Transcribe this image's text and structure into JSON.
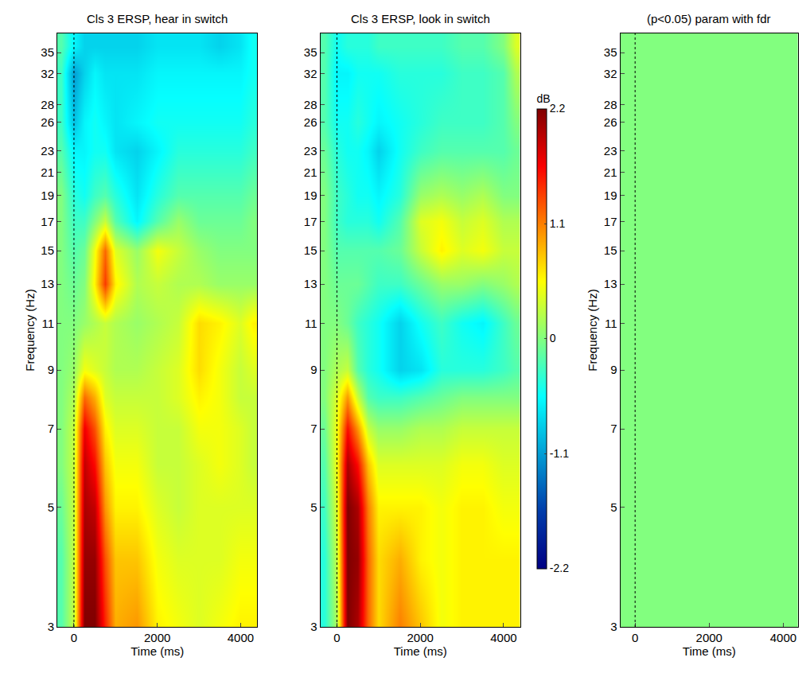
{
  "chart_data": [
    {
      "type": "heatmap",
      "title": "Cls 3 ERSP, hear in switch",
      "x_label": "Time (ms)",
      "y_label": "Frequency (Hz)",
      "log": "y",
      "color": "Jet",
      "color_range": [
        -2.2,
        2.2
      ],
      "event_times": [
        0
      ],
      "xlim": [
        -400,
        4400
      ],
      "xticks": [
        0,
        2000,
        4000
      ],
      "ylim": [
        3,
        38
      ],
      "yticks": [
        3,
        5,
        7,
        9,
        11,
        13,
        15,
        17,
        19,
        21,
        23,
        26,
        28,
        32,
        35
      ],
      "x": [
        -300,
        0,
        250,
        500,
        750,
        1000,
        1500,
        2000,
        2500,
        3000,
        3500,
        4000,
        4300
      ],
      "y": [
        3,
        4,
        5,
        6,
        7,
        8,
        9,
        11,
        13,
        15,
        17,
        19,
        23,
        26,
        32,
        36
      ],
      "cells": [
        [
          -0.2,
          0.3,
          2.2,
          2.2,
          1.5,
          0.9,
          1.0,
          0.6,
          0.5,
          0.4,
          0.5,
          0.6,
          0.6
        ],
        [
          -0.2,
          0.3,
          2.1,
          2.1,
          1.3,
          0.8,
          0.8,
          0.5,
          0.4,
          0.4,
          0.4,
          0.5,
          0.5
        ],
        [
          -0.1,
          0.3,
          2.0,
          1.9,
          1.0,
          0.6,
          0.6,
          0.4,
          0.3,
          0.4,
          0.4,
          0.4,
          0.4
        ],
        [
          0.0,
          0.3,
          1.9,
          1.6,
          0.8,
          0.5,
          0.5,
          0.3,
          0.3,
          0.4,
          0.5,
          0.4,
          0.3
        ],
        [
          0.0,
          0.3,
          1.7,
          1.3,
          0.6,
          0.4,
          0.4,
          0.3,
          0.3,
          0.5,
          0.5,
          0.4,
          0.3
        ],
        [
          0.0,
          0.2,
          1.2,
          0.9,
          0.4,
          0.3,
          0.3,
          0.3,
          0.4,
          0.6,
          0.5,
          0.3,
          0.3
        ],
        [
          0.0,
          0.1,
          0.5,
          0.4,
          0.3,
          0.2,
          0.2,
          0.3,
          0.4,
          0.7,
          0.5,
          0.3,
          0.4
        ],
        [
          0.0,
          0.0,
          0.1,
          0.2,
          0.3,
          0.2,
          0.1,
          0.2,
          0.3,
          0.7,
          0.6,
          0.4,
          0.6
        ],
        [
          0.0,
          -0.1,
          0.0,
          0.6,
          1.4,
          0.6,
          0.2,
          0.3,
          0.2,
          0.2,
          0.1,
          0.1,
          0.1
        ],
        [
          0.0,
          -0.2,
          -0.1,
          0.5,
          1.2,
          0.4,
          0.1,
          0.5,
          0.3,
          0.1,
          0.0,
          0.0,
          0.0
        ],
        [
          0.0,
          -0.3,
          -0.3,
          0.0,
          0.3,
          -0.2,
          -0.6,
          -0.2,
          0.1,
          -0.1,
          -0.1,
          -0.1,
          0.0
        ],
        [
          0.0,
          -0.4,
          -0.5,
          -0.3,
          -0.2,
          -0.4,
          -0.7,
          -0.4,
          -0.2,
          -0.2,
          -0.2,
          -0.2,
          -0.1
        ],
        [
          -0.2,
          -0.6,
          -0.6,
          -0.5,
          -0.5,
          -0.7,
          -0.8,
          -0.6,
          -0.4,
          -0.4,
          -0.4,
          -0.4,
          -0.3
        ],
        [
          -0.3,
          -0.9,
          -0.6,
          -0.5,
          -0.6,
          -0.7,
          -0.6,
          -0.5,
          -0.5,
          -0.5,
          -0.5,
          -0.5,
          -0.4
        ],
        [
          -0.3,
          -1.1,
          -0.8,
          -0.6,
          -0.7,
          -0.7,
          -0.7,
          -0.6,
          -0.6,
          -0.6,
          -0.6,
          -0.6,
          -0.5
        ],
        [
          -0.2,
          -0.6,
          -0.8,
          -0.8,
          -0.8,
          -0.8,
          -0.8,
          -0.7,
          -0.7,
          -0.7,
          -0.8,
          -0.7,
          -0.5
        ]
      ]
    },
    {
      "type": "heatmap",
      "title": "Cls 3 ERSP, look in switch",
      "x_label": "Time (ms)",
      "log": "y",
      "color": "Jet",
      "event_times": [
        0
      ],
      "colorbar": {
        "title": "dB",
        "range": [
          -2.2,
          2.2
        ],
        "ticks": [
          -2.2,
          -1.1,
          0,
          1.1,
          2.2
        ]
      },
      "xlim": [
        -400,
        4400
      ],
      "xticks": [
        0,
        2000,
        4000
      ],
      "ylim": [
        3,
        38
      ],
      "yticks": [
        3,
        5,
        7,
        9,
        11,
        13,
        15,
        17,
        19,
        21,
        23,
        26,
        28,
        32,
        35
      ],
      "x": [
        -300,
        0,
        250,
        500,
        750,
        1000,
        1500,
        2000,
        2500,
        3000,
        3500,
        4000,
        4300
      ],
      "y": [
        3,
        4,
        5,
        6,
        7,
        8,
        9,
        11,
        13,
        15,
        17,
        19,
        23,
        26,
        32,
        36
      ],
      "cells": [
        [
          -0.4,
          0.2,
          2.2,
          2.0,
          1.2,
          0.7,
          1.1,
          0.8,
          0.5,
          0.6,
          0.6,
          0.6,
          0.6
        ],
        [
          -0.4,
          0.3,
          2.2,
          2.1,
          1.2,
          0.7,
          0.9,
          0.6,
          0.5,
          0.6,
          0.6,
          0.6,
          0.6
        ],
        [
          -0.3,
          0.4,
          2.2,
          2.0,
          1.1,
          0.6,
          0.6,
          0.6,
          0.5,
          0.6,
          0.6,
          0.5,
          0.5
        ],
        [
          -0.2,
          0.5,
          2.0,
          1.6,
          0.8,
          0.4,
          0.4,
          0.4,
          0.4,
          0.5,
          0.5,
          0.4,
          0.4
        ],
        [
          -0.1,
          0.5,
          1.6,
          1.0,
          0.3,
          0.1,
          0.1,
          0.2,
          0.2,
          0.3,
          0.3,
          0.3,
          0.3
        ],
        [
          0.0,
          0.4,
          1.0,
          0.3,
          -0.2,
          -0.3,
          -0.3,
          -0.2,
          -0.1,
          0.0,
          0.0,
          0.0,
          0.0
        ],
        [
          0.0,
          0.2,
          0.3,
          -0.2,
          -0.4,
          -0.5,
          -0.8,
          -0.7,
          -0.4,
          -0.4,
          -0.4,
          -0.3,
          -0.2
        ],
        [
          0.0,
          0.0,
          -0.1,
          -0.3,
          -0.4,
          -0.5,
          -0.8,
          -0.5,
          -0.3,
          -0.5,
          -0.6,
          -0.3,
          -0.1
        ],
        [
          0.0,
          -0.1,
          -0.1,
          -0.1,
          -0.2,
          -0.3,
          -0.3,
          -0.1,
          0.1,
          0.1,
          0.0,
          0.1,
          0.2
        ],
        [
          0.0,
          -0.2,
          -0.2,
          -0.2,
          -0.2,
          -0.2,
          -0.1,
          0.3,
          0.6,
          0.4,
          0.5,
          0.3,
          0.3
        ],
        [
          0.0,
          -0.3,
          -0.4,
          -0.4,
          -0.4,
          -0.5,
          -0.2,
          0.4,
          0.5,
          0.3,
          0.4,
          0.2,
          0.2
        ],
        [
          0.0,
          -0.3,
          -0.4,
          -0.5,
          -0.5,
          -0.6,
          -0.4,
          0.1,
          0.2,
          0.1,
          0.2,
          0.0,
          0.0
        ],
        [
          -0.1,
          -0.4,
          -0.5,
          -0.5,
          -0.6,
          -0.8,
          -0.5,
          -0.3,
          -0.2,
          -0.2,
          -0.2,
          -0.2,
          -0.1
        ],
        [
          -0.2,
          -0.5,
          -0.5,
          -0.4,
          -0.5,
          -0.6,
          -0.5,
          -0.4,
          -0.3,
          -0.3,
          -0.3,
          -0.2,
          0.0
        ],
        [
          -0.2,
          -0.6,
          -0.6,
          -0.5,
          -0.5,
          -0.5,
          -0.4,
          -0.4,
          -0.4,
          -0.3,
          -0.3,
          -0.2,
          0.2
        ],
        [
          -0.2,
          -0.5,
          -0.4,
          -0.4,
          -0.4,
          -0.3,
          -0.3,
          -0.3,
          -0.3,
          -0.2,
          -0.2,
          0.0,
          0.4
        ]
      ]
    },
    {
      "type": "heatmap",
      "title": "(p<0.05) param with fdr",
      "x_label": "Time (ms)",
      "y_label": "Frequency (Hz)",
      "log": "y",
      "color": "Jet",
      "color_range": [
        -2.2,
        2.2
      ],
      "event_times": [
        0
      ],
      "xlim": [
        -400,
        4400
      ],
      "xticks": [
        0,
        2000,
        4000
      ],
      "ylim": [
        3,
        38
      ],
      "yticks": [
        3,
        5,
        7,
        9,
        11,
        13,
        15,
        17,
        19,
        21,
        23,
        26,
        28,
        32,
        35
      ],
      "x": [
        -400,
        4400
      ],
      "y": [
        3,
        38
      ],
      "cells": [
        [
          0
        ]
      ]
    }
  ]
}
